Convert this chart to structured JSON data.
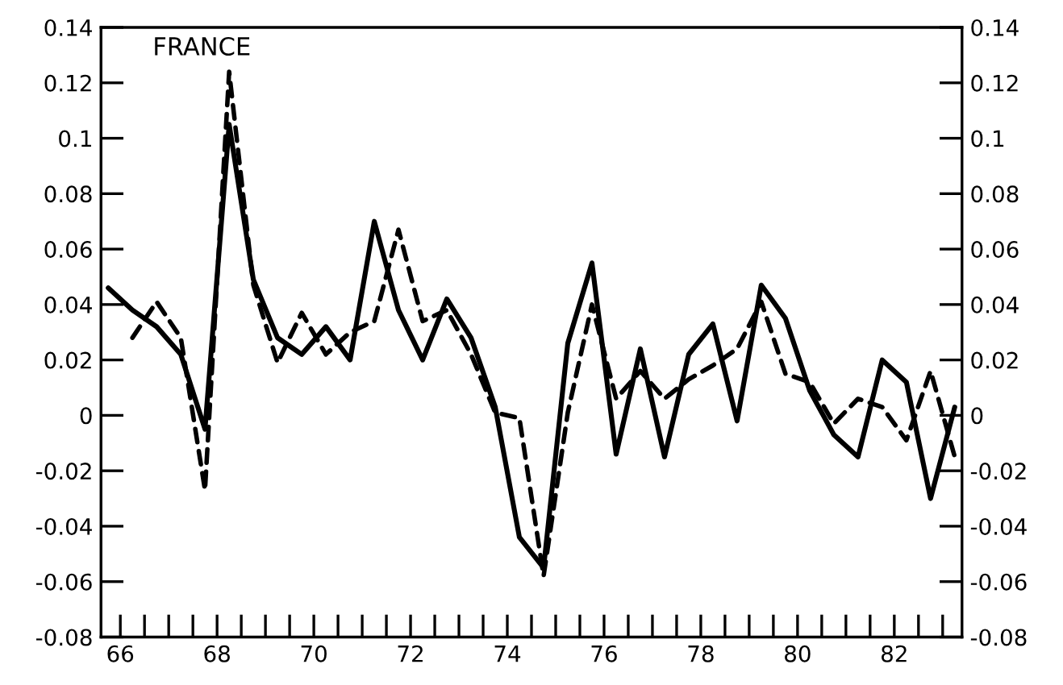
{
  "chart_data": {
    "type": "line",
    "x": [
      65.75,
      66.25,
      66.75,
      67.25,
      67.75,
      68.25,
      68.75,
      69.25,
      69.75,
      70.25,
      70.75,
      71.25,
      71.75,
      72.25,
      72.75,
      73.25,
      73.75,
      74.25,
      74.75,
      75.25,
      75.75,
      76.25,
      76.75,
      77.25,
      77.75,
      78.25,
      78.75,
      79.25,
      79.75,
      80.25,
      80.75,
      81.25,
      81.75,
      82.25,
      82.75,
      83.25
    ],
    "series": [
      {
        "color": "#000000",
        "line_style": "solid",
        "values": [
          0.046,
          0.038,
          0.032,
          0.022,
          -0.005,
          0.105,
          0.049,
          0.028,
          0.022,
          0.032,
          0.02,
          0.07,
          0.038,
          0.02,
          0.042,
          0.028,
          0.003,
          -0.044,
          -0.055,
          0.026,
          0.055,
          -0.014,
          0.024,
          -0.015,
          0.022,
          0.033,
          -0.002,
          0.047,
          0.035,
          0.009,
          -0.007,
          -0.015,
          0.02,
          0.012,
          -0.03,
          0.003
        ]
      },
      {
        "color": "#000000",
        "line_style": "dashed",
        "values": [
          null,
          0.028,
          0.041,
          0.028,
          -0.027,
          0.124,
          0.047,
          0.019,
          0.037,
          0.022,
          0.03,
          0.034,
          0.067,
          0.034,
          0.038,
          0.022,
          0.001,
          -0.001,
          -0.058,
          0.001,
          0.04,
          0.006,
          0.016,
          0.006,
          0.013,
          0.018,
          0.024,
          0.041,
          0.015,
          0.012,
          -0.003,
          0.006,
          0.003,
          -0.009,
          0.016,
          -0.015
        ]
      }
    ],
    "annotations": [
      "FRANCE"
    ],
    "xlim": [
      65.6,
      83.4
    ],
    "xticks": [
      66,
      {
        "value": 66.5,
        "label": null
      },
      {
        "value": 67,
        "label": null
      },
      {
        "value": 67.5,
        "label": null
      },
      68,
      {
        "value": 68.5,
        "label": null
      },
      {
        "value": 69,
        "label": null
      },
      {
        "value": 69.5,
        "label": null
      },
      70,
      {
        "value": 70.5,
        "label": null
      },
      {
        "value": 71,
        "label": null
      },
      {
        "value": 71.5,
        "label": null
      },
      72,
      {
        "value": 72.5,
        "label": null
      },
      {
        "value": 73,
        "label": null
      },
      {
        "value": 73.5,
        "label": null
      },
      74,
      {
        "value": 74.5,
        "label": null
      },
      {
        "value": 75,
        "label": null
      },
      {
        "value": 75.5,
        "label": null
      },
      76,
      {
        "value": 76.5,
        "label": null
      },
      {
        "value": 77,
        "label": null
      },
      {
        "value": 77.5,
        "label": null
      },
      78,
      {
        "value": 78.5,
        "label": null
      },
      {
        "value": 79,
        "label": null
      },
      {
        "value": 79.5,
        "label": null
      },
      80,
      {
        "value": 80.5,
        "label": null
      },
      {
        "value": 81,
        "label": null
      },
      {
        "value": 81.5,
        "label": null
      },
      82,
      {
        "value": 82.5,
        "label": null
      },
      {
        "value": 83,
        "label": null
      }
    ],
    "ylim": [
      -0.08,
      0.14
    ],
    "yticks": [
      -0.08,
      -0.06,
      -0.04,
      -0.02,
      0,
      0.02,
      0.04,
      0.06,
      0.08,
      0.1,
      0.12,
      0.14
    ],
    "y2lim": [
      -0.08,
      0.14
    ],
    "y2ticks": [
      -0.08,
      -0.06,
      -0.04,
      -0.02,
      0,
      0.02,
      0.04,
      0.06,
      0.08,
      0.1,
      0.12,
      0.14
    ],
    "grid": false,
    "legend": false
  }
}
